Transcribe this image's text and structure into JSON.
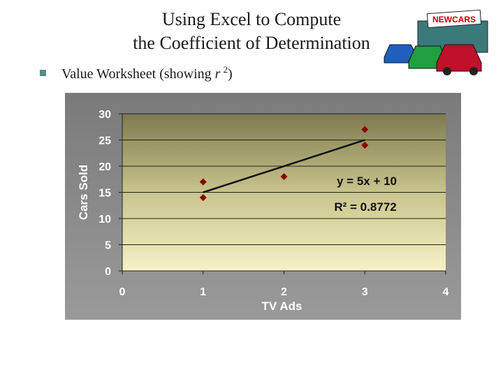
{
  "title_lines": [
    "Using Excel to Compute",
    "the Coefficient of Determination"
  ],
  "logo_text": "NEWCARS",
  "bullet": {
    "text": "Value Worksheet (showing ",
    "var": "r",
    "sup": "2",
    "end": ")"
  },
  "chart_data": {
    "type": "scatter",
    "x": [
      1,
      1,
      2,
      3,
      3
    ],
    "values": [
      14,
      17,
      18,
      27,
      24
    ],
    "color": "#8b0000",
    "xlabel": "TV Ads",
    "ylabel": "Cars Sold",
    "xlim": [
      0,
      4
    ],
    "xticks": [
      0,
      1,
      2,
      3,
      4
    ],
    "ylim": [
      0,
      30
    ],
    "yticks": [
      0,
      5,
      10,
      15,
      20,
      25,
      30
    ],
    "grid": true,
    "trendline": true,
    "annotations": [
      "y = 5x + 10",
      "R² = 0.8772"
    ]
  }
}
